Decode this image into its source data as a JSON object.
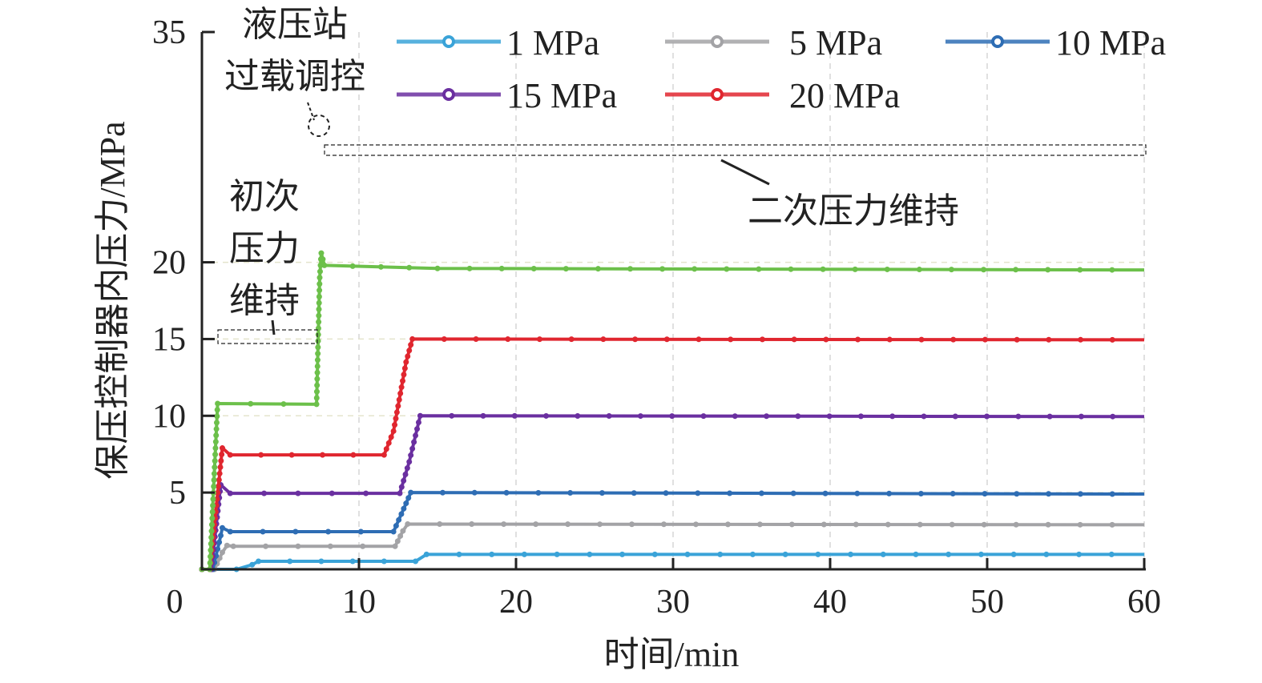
{
  "chart_data": {
    "type": "line",
    "title": "",
    "xlabel": "时间/min",
    "ylabel": "保压控制器内压力/MPa",
    "xlim": [
      0,
      60
    ],
    "ylim": [
      0,
      35
    ],
    "xticks": [
      "0",
      "10",
      "20",
      "30",
      "40",
      "50",
      "60"
    ],
    "yticks": [
      "5",
      "10",
      "15",
      "20",
      "35"
    ],
    "ytick_values": [
      5,
      10,
      15,
      20,
      35
    ],
    "grid": true,
    "legend_position": "top",
    "series": [
      {
        "name": "1 MPa",
        "color": "#3aa3d8",
        "in_legend": true,
        "x": [
          0,
          2.2,
          3.2,
          3.6,
          13.6,
          14.3,
          60
        ],
        "y": [
          0,
          0,
          0.3,
          0.52,
          0.52,
          0.97,
          0.97
        ]
      },
      {
        "name": "5 MPa",
        "color": "#a3a3a6",
        "in_legend": true,
        "x": [
          0,
          0.8,
          1.3,
          1.6,
          2.0,
          12.3,
          12.8,
          13.1,
          60
        ],
        "y": [
          0,
          0,
          1.1,
          1.55,
          1.5,
          1.5,
          2.5,
          2.95,
          2.9
        ]
      },
      {
        "name": "10 MPa",
        "color": "#2e6db4",
        "in_legend": true,
        "x": [
          0,
          0.7,
          1.2,
          1.3,
          1.8,
          12.2,
          12.7,
          13.3,
          60
        ],
        "y": [
          0,
          0,
          2.2,
          2.7,
          2.45,
          2.45,
          3.6,
          5.0,
          4.9
        ]
      },
      {
        "name": "15 MPa",
        "color": "#6a2fa0",
        "in_legend": true,
        "x": [
          0,
          0.6,
          1.2,
          1.8,
          12.6,
          13.2,
          13.9,
          60
        ],
        "y": [
          0,
          0,
          5.5,
          4.95,
          4.95,
          7.0,
          10.0,
          9.95
        ]
      },
      {
        "name": "20 MPa",
        "color": "#e0262f",
        "in_legend": true,
        "x": [
          0,
          0.5,
          1.3,
          1.8,
          11.6,
          12.2,
          13.0,
          13.4,
          60
        ],
        "y": [
          0,
          0,
          7.9,
          7.45,
          7.45,
          9.0,
          13.5,
          15.0,
          14.95
        ]
      },
      {
        "name": "",
        "color": "#6cc04a",
        "in_legend": false,
        "x": [
          0,
          0.5,
          1.0,
          7.3,
          7.5,
          7.6,
          7.8,
          15,
          60
        ],
        "y": [
          0,
          0,
          10.8,
          10.75,
          19.0,
          20.6,
          19.8,
          19.6,
          19.5
        ]
      }
    ],
    "annotations": {
      "overload": [
        "液压站",
        "过载调控"
      ],
      "first_hold": [
        "初次",
        "压力",
        "维持"
      ],
      "second_hold": "二次压力维持"
    }
  }
}
